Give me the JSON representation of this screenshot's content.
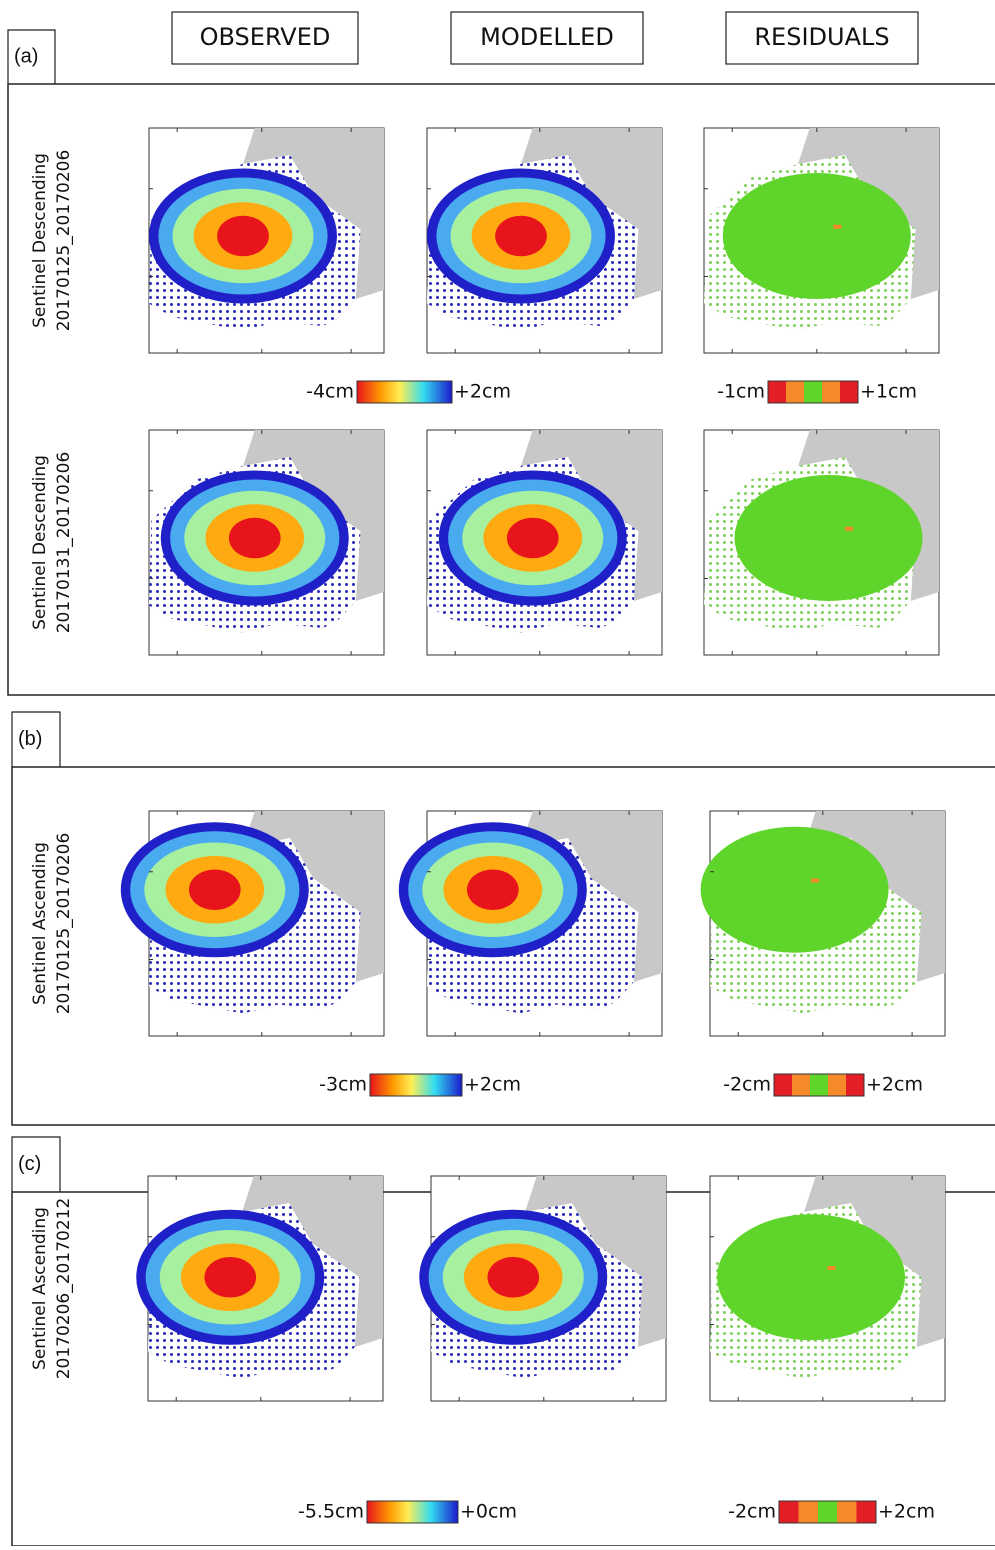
{
  "headers": [
    "OBSERVED",
    "MODELLED",
    "RESIDUALS"
  ],
  "sections": [
    {
      "label": "(a)",
      "rows": [
        {
          "title": "Sentinel Descending",
          "dates": "20170125_20170206"
        },
        {
          "title": "Sentinel Descending",
          "dates": "20170131_20170206"
        }
      ],
      "colorbars": [
        {
          "min": "-4cm",
          "max": "+2cm"
        },
        {
          "min": "-1cm",
          "max": "+1cm"
        }
      ]
    },
    {
      "label": "(b)",
      "rows": [
        {
          "title": "Sentinel Ascending",
          "dates": "20170125_20170206"
        }
      ],
      "colorbars": [
        {
          "min": "-3cm",
          "max": "+2cm"
        },
        {
          "min": "-2cm",
          "max": "+2cm"
        }
      ]
    },
    {
      "label": "(c)",
      "rows": [
        {
          "title": "Sentinel Ascending",
          "dates": "20170206_20170212"
        }
      ],
      "colorbars": [
        {
          "min": "-5.5cm",
          "max": "+0cm"
        },
        {
          "min": "-2cm",
          "max": "+2cm"
        }
      ]
    }
  ]
}
